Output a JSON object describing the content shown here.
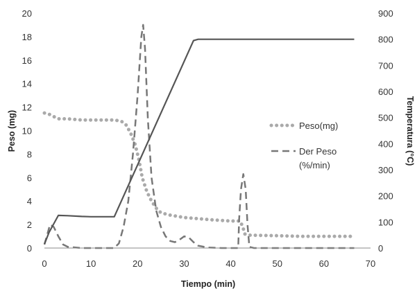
{
  "chart_data": {
    "type": "line",
    "xlabel": "Tiempo (min)",
    "ylabel": "Peso (mg)",
    "y2label": "Temperatura  (°C)",
    "xlim": [
      0,
      70
    ],
    "ylim": [
      0,
      20
    ],
    "y2lim": [
      0,
      900
    ],
    "x_ticks": [
      "0",
      "10",
      "20",
      "30",
      "40",
      "50",
      "60",
      "70"
    ],
    "y_ticks": [
      "0",
      "2",
      "4",
      "6",
      "8",
      "10",
      "12",
      "14",
      "16",
      "18",
      "20"
    ],
    "y2_ticks": [
      "0",
      "100",
      "200",
      "300",
      "400",
      "500",
      "600",
      "700",
      "800",
      "900"
    ],
    "grid": false,
    "legend_position": "right",
    "legend": [
      {
        "label_line1": "Peso(mg)",
        "label_line2": ""
      },
      {
        "label_line1": "Der Peso",
        "label_line2": "(%/min)"
      }
    ],
    "series": [
      {
        "name": "Peso(mg)",
        "axis": "left",
        "style": "dotted",
        "color": "#aaaaaa",
        "points": [
          [
            0,
            11.5
          ],
          [
            1,
            11.4
          ],
          [
            2,
            11.2
          ],
          [
            3,
            11.0
          ],
          [
            5,
            11.0
          ],
          [
            8,
            10.9
          ],
          [
            10,
            10.9
          ],
          [
            12,
            10.9
          ],
          [
            15,
            10.9
          ],
          [
            16.5,
            10.8
          ],
          [
            17.5,
            10.5
          ],
          [
            18.5,
            9.8
          ],
          [
            19.5,
            8.8
          ],
          [
            20.3,
            7.5
          ],
          [
            21,
            6.0
          ],
          [
            22,
            4.8
          ],
          [
            23,
            4.0
          ],
          [
            24,
            3.4
          ],
          [
            25,
            3.0
          ],
          [
            27,
            2.8
          ],
          [
            30,
            2.6
          ],
          [
            33,
            2.5
          ],
          [
            36,
            2.4
          ],
          [
            40,
            2.3
          ],
          [
            42,
            2.3
          ],
          [
            42.6,
            1.8
          ],
          [
            43,
            1.2
          ],
          [
            44,
            1.1
          ],
          [
            50,
            1.05
          ],
          [
            55,
            1.0
          ],
          [
            60,
            1.0
          ],
          [
            63,
            1.0
          ],
          [
            66.5,
            1.0
          ]
        ]
      },
      {
        "name": "Der Peso (%/min)",
        "axis": "left",
        "style": "dashed",
        "color": "#777777",
        "points": [
          [
            0,
            0.3
          ],
          [
            0.5,
            1.0
          ],
          [
            1.2,
            2.0
          ],
          [
            2,
            1.8
          ],
          [
            3,
            1.0
          ],
          [
            4,
            0.3
          ],
          [
            5,
            0.1
          ],
          [
            8,
            0.0
          ],
          [
            11,
            0.0
          ],
          [
            15,
            0.0
          ],
          [
            16,
            0.4
          ],
          [
            17,
            1.8
          ],
          [
            18,
            4.0
          ],
          [
            19,
            8.0
          ],
          [
            20,
            13.0
          ],
          [
            20.8,
            18.0
          ],
          [
            21.2,
            19.0
          ],
          [
            21.6,
            17.0
          ],
          [
            22.2,
            11.0
          ],
          [
            23,
            6.0
          ],
          [
            24,
            3.2
          ],
          [
            25,
            1.8
          ],
          [
            26,
            1.0
          ],
          [
            27,
            0.6
          ],
          [
            28,
            0.5
          ],
          [
            29,
            0.7
          ],
          [
            30,
            1.0
          ],
          [
            31,
            0.9
          ],
          [
            32,
            0.5
          ],
          [
            33,
            0.2
          ],
          [
            35,
            0.05
          ],
          [
            38,
            0.0
          ],
          [
            41.6,
            0.0
          ],
          [
            41.8,
            2.5
          ],
          [
            42.2,
            5.0
          ],
          [
            42.7,
            6.3
          ],
          [
            43.2,
            5.0
          ],
          [
            43.6,
            2.0
          ],
          [
            44,
            0.1
          ],
          [
            45,
            0.0
          ],
          [
            50,
            0.0
          ],
          [
            60,
            0.0
          ],
          [
            66.5,
            0.0
          ]
        ]
      },
      {
        "name": "Temperatura",
        "axis": "right",
        "style": "solid",
        "color": "#555555",
        "points": [
          [
            0,
            15
          ],
          [
            1,
            60
          ],
          [
            3,
            125
          ],
          [
            5,
            124
          ],
          [
            8,
            121
          ],
          [
            10,
            120
          ],
          [
            12,
            120
          ],
          [
            15,
            120
          ],
          [
            32,
            795
          ],
          [
            33,
            800
          ],
          [
            40,
            800
          ],
          [
            50,
            800
          ],
          [
            60,
            800
          ],
          [
            66.5,
            800
          ]
        ]
      }
    ]
  }
}
